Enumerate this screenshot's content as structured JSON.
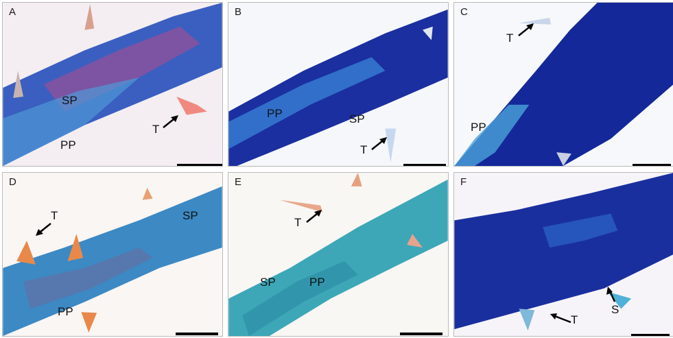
{
  "panels": [
    {
      "id": "A",
      "labels": [
        "SP",
        "PP",
        "T"
      ]
    },
    {
      "id": "B",
      "labels": [
        "PP",
        "SP",
        "T"
      ]
    },
    {
      "id": "C",
      "labels": [
        "T",
        "PP"
      ]
    },
    {
      "id": "D",
      "labels": [
        "T",
        "SP",
        "PP"
      ]
    },
    {
      "id": "E",
      "labels": [
        "T",
        "SP",
        "PP"
      ]
    },
    {
      "id": "F",
      "labels": [
        "T",
        "S"
      ]
    }
  ],
  "colors": {
    "stain_dark_blue": "#1b2fa0",
    "stain_mid_blue": "#2f6fd0",
    "stain_teal": "#3fa6b8",
    "stain_pink": "#e28aa0",
    "trichome_orange": "#e89060"
  }
}
